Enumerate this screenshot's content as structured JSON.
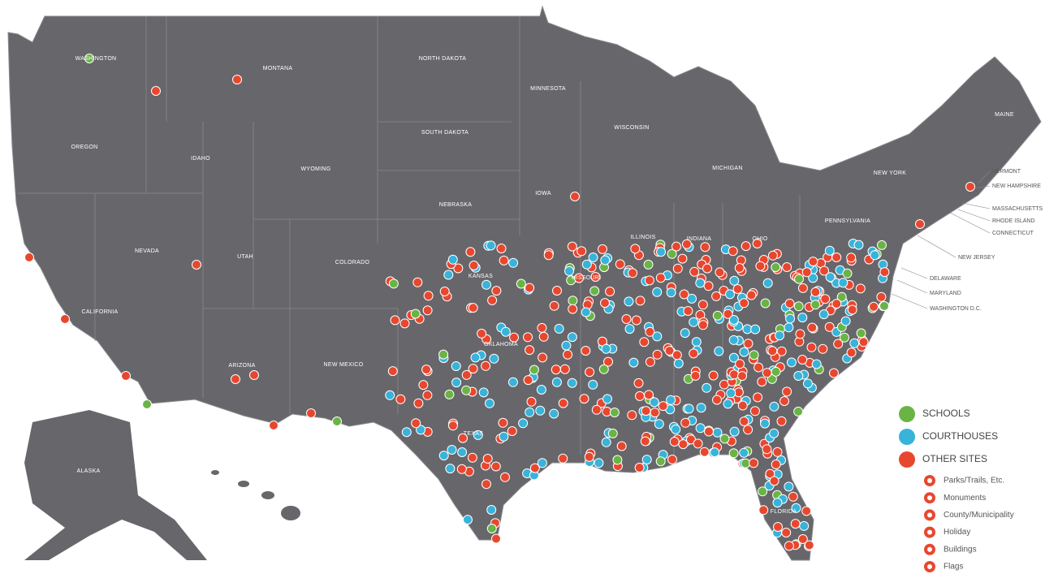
{
  "map": {
    "states": [
      "WASHINGTON",
      "MONTANA",
      "NORTH DAKOTA",
      "MINNESOTA",
      "OREGON",
      "IDAHO",
      "SOUTH DAKOTA",
      "WISCONSIN",
      "MICHIGAN",
      "WYOMING",
      "IOWA",
      "NEBRASKA",
      "NEW YORK",
      "MAINE",
      "PENNSYLVANIA",
      "ILLINOIS",
      "INDIANA",
      "OHIO",
      "NEVADA",
      "UTAH",
      "COLORADO",
      "KANSAS",
      "MISSOURI",
      "CALIFORNIA",
      "OKLAHOMA",
      "ARIZONA",
      "NEW MEXICO",
      "TEXAS",
      "ALASKA",
      "FLORIDA"
    ],
    "callouts": [
      "VERMONT",
      "NEW HAMPSHIRE",
      "MASSACHUSETTS",
      "RHODE ISLAND",
      "CONNECTICUT",
      "NEW JERSEY",
      "DELAWARE",
      "MARYLAND",
      "WASHINGTON D.C."
    ],
    "legend": {
      "groups": [
        "SCHOOLS",
        "COURTHOUSES",
        "OTHER SITES"
      ],
      "subtypes": [
        "Parks/Trails, Etc.",
        "Monuments",
        "County/Municipality",
        "Holiday",
        "Buildings",
        "Flags"
      ]
    }
  }
}
